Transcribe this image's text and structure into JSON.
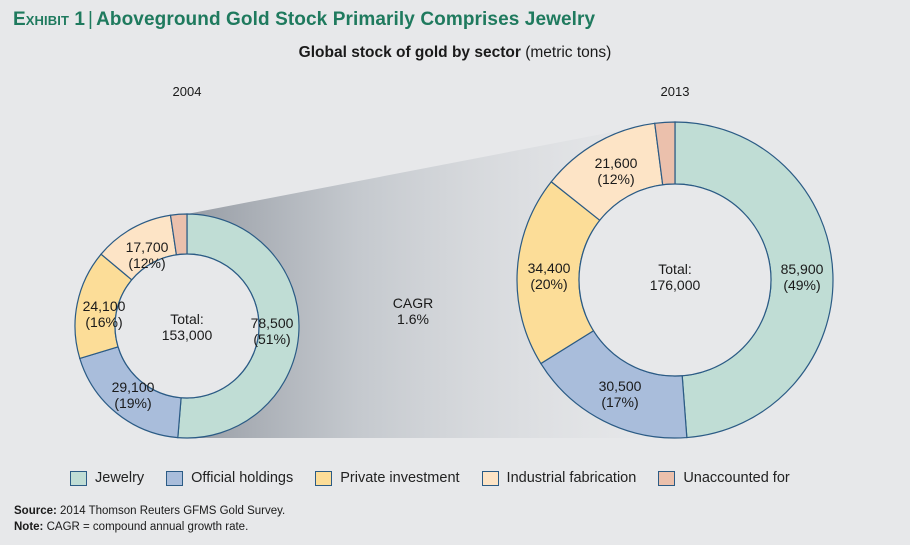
{
  "header": {
    "exhibit_label": "Exhibit 1",
    "separator": "|",
    "title": "Aboveground Gold Stock Primarily Comprises Jewelry",
    "subtitle_bold": "Global stock of gold by sector",
    "subtitle_units": "(metric tons)"
  },
  "chart_data": {
    "type": "pie",
    "title": "Global stock of gold by sector (metric tons)",
    "variant": "donut",
    "sectors": [
      "Jewelry",
      "Official holdings",
      "Private investment",
      "Industrial fabrication",
      "Unaccounted for"
    ],
    "colors": [
      "#c0ddd5",
      "#a9bddb",
      "#fcdd98",
      "#fde4c6",
      "#ebc0ac"
    ],
    "stroke_color": "#2b5b85",
    "charts": [
      {
        "year": "2004",
        "total_label": "Total:",
        "total_value": "153,000",
        "total": 153000,
        "values": [
          78500,
          29100,
          24100,
          17700,
          3600
        ],
        "labels": [
          {
            "value": "78,500",
            "pct": "(51%)"
          },
          {
            "value": "29,100",
            "pct": "(19%)"
          },
          {
            "value": "24,100",
            "pct": "(16%)"
          },
          {
            "value": "17,700",
            "pct": "(12%)"
          },
          {
            "value": "",
            "pct": ""
          }
        ]
      },
      {
        "year": "2013",
        "total_label": "Total:",
        "total_value": "176,000",
        "total": 176000,
        "values": [
          85900,
          30500,
          34400,
          21600,
          3600
        ],
        "labels": [
          {
            "value": "85,900",
            "pct": "(49%)"
          },
          {
            "value": "30,500",
            "pct": "(17%)"
          },
          {
            "value": "34,400",
            "pct": "(20%)"
          },
          {
            "value": "21,600",
            "pct": "(12%)"
          },
          {
            "value": "",
            "pct": ""
          }
        ]
      }
    ],
    "growth": {
      "label": "CAGR",
      "value": "1.6%"
    }
  },
  "legend": [
    {
      "label": "Jewelry"
    },
    {
      "label": "Official holdings"
    },
    {
      "label": "Private investment"
    },
    {
      "label": "Industrial fabrication"
    },
    {
      "label": "Unaccounted for"
    }
  ],
  "footer": {
    "source_label": "Source:",
    "source_text": "2014 Thomson Reuters GFMS Gold Survey.",
    "note_label": "Note:",
    "note_text": "CAGR = compound annual growth rate."
  }
}
